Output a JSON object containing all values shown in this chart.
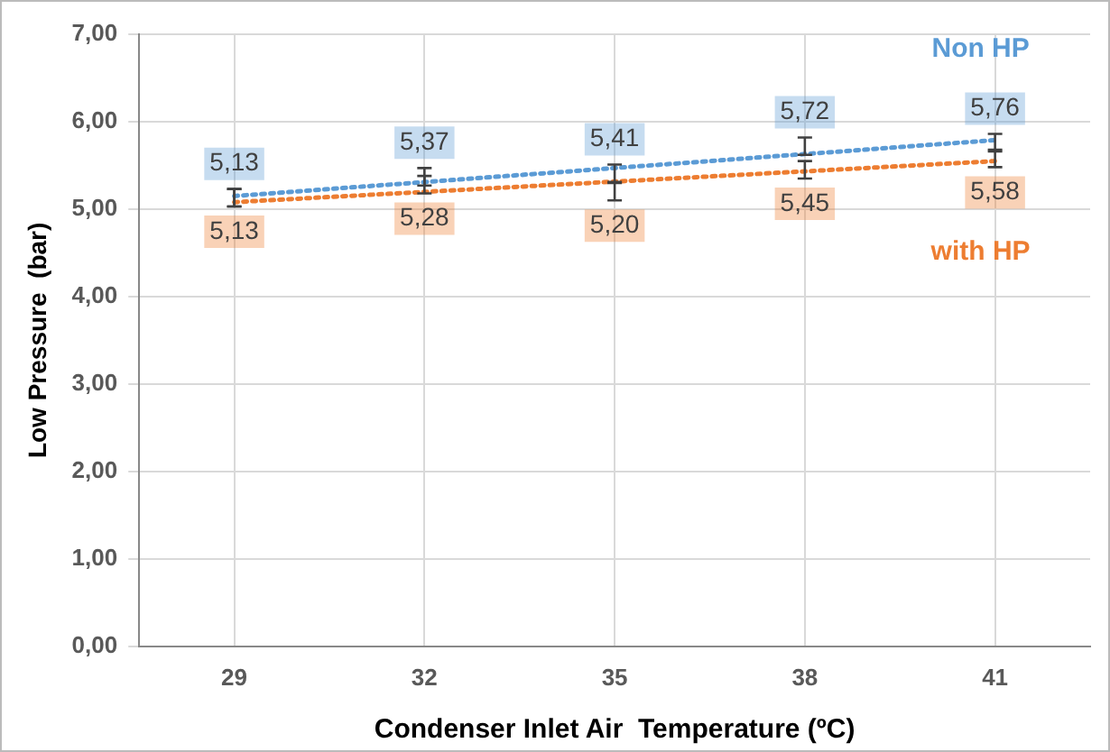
{
  "chart_data": {
    "type": "scatter",
    "xlabel": "Condenser Inlet Air  Temperature (ºC)",
    "ylabel": "Low Pressure  (bar)",
    "categories": [
      "29",
      "32",
      "35",
      "38",
      "41"
    ],
    "ylim": [
      0,
      7
    ],
    "yticks": [
      {
        "value": 0,
        "label": "0,00"
      },
      {
        "value": 1,
        "label": "1,00"
      },
      {
        "value": 2,
        "label": "2,00"
      },
      {
        "value": 3,
        "label": "3,00"
      },
      {
        "value": 4,
        "label": "4,00"
      },
      {
        "value": 5,
        "label": "5,00"
      },
      {
        "value": 6,
        "label": "6,00"
      },
      {
        "value": 7,
        "label": "7,00"
      }
    ],
    "grid": true,
    "legend": false,
    "series": [
      {
        "name": "Non HP",
        "color": "#404040",
        "values": [
          5.13,
          5.37,
          5.41,
          5.72,
          5.76
        ],
        "errors": [
          0.1,
          0.1,
          0.1,
          0.1,
          0.1
        ],
        "value_labels": [
          "5,13",
          "5,37",
          "5,41",
          "5,72",
          "5,76"
        ]
      },
      {
        "name": "with HP",
        "color": "#404040",
        "values": [
          5.13,
          5.28,
          5.2,
          5.45,
          5.58
        ],
        "errors": [
          0.1,
          0.1,
          0.1,
          0.1,
          0.1
        ],
        "value_labels": [
          "5,13",
          "5,28",
          "5,20",
          "5,45",
          "5,58"
        ]
      },
      {
        "type": "line",
        "line_style": "dotted",
        "color": "#5b9bd5",
        "x": [
          "29",
          "41"
        ],
        "values": [
          5.15,
          5.79
        ]
      },
      {
        "type": "line",
        "line_style": "dotted",
        "color": "#ed7d31",
        "x": [
          "29",
          "41"
        ],
        "values": [
          5.08,
          5.55
        ]
      }
    ]
  }
}
